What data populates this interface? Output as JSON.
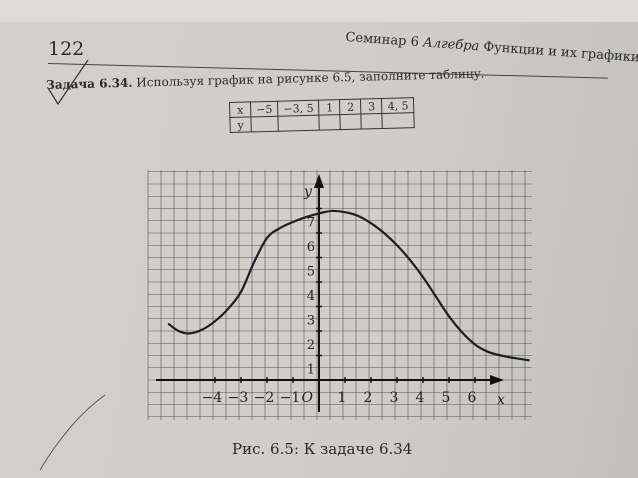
{
  "header": {
    "page_number": "122",
    "seminar": "Семинар 6",
    "section": "Алгебра",
    "topic": "Функции и их графики"
  },
  "task": {
    "label": "Задача 6.34.",
    "text": "Используя график на рисунке 6.5, заполните таблицу."
  },
  "table": {
    "row_x_label": "x",
    "row_y_label": "y",
    "x_values": [
      "−5",
      "−3, 5",
      "1",
      "2",
      "3",
      "4, 5"
    ],
    "y_values": [
      "",
      "",
      "",
      "",
      "",
      ""
    ]
  },
  "caption": "Рис. 6.5: К задаче 6.34",
  "chart_data": {
    "type": "line",
    "xlabel": "x",
    "ylabel": "y",
    "origin_label": "O",
    "x_ticks": [
      "−4",
      "−3",
      "−2",
      "−1",
      "1",
      "2",
      "3",
      "4",
      "5",
      "6"
    ],
    "y_ticks": [
      "1",
      "2",
      "3",
      "4",
      "5",
      "6",
      "7"
    ],
    "xlim": [
      -6,
      8.2
    ],
    "ylim": [
      -0.5,
      8
    ],
    "grid": true,
    "x": [
      -5.8,
      -5.4,
      -5,
      -4.5,
      -4,
      -3.5,
      -3,
      -2.5,
      -2,
      -1.5,
      -1,
      -0.5,
      0,
      0.5,
      1,
      1.5,
      2,
      2.5,
      3,
      3.5,
      4,
      4.5,
      5,
      5.5,
      6,
      6.5,
      7,
      7.5,
      8.1
    ],
    "y": [
      2.3,
      2.0,
      1.9,
      2.05,
      2.4,
      2.9,
      3.6,
      4.8,
      5.8,
      6.2,
      6.45,
      6.65,
      6.8,
      6.9,
      6.85,
      6.7,
      6.4,
      6.0,
      5.5,
      4.9,
      4.2,
      3.4,
      2.6,
      1.95,
      1.45,
      1.15,
      1.0,
      0.9,
      0.8
    ],
    "curve_color": "#1e1e22"
  }
}
